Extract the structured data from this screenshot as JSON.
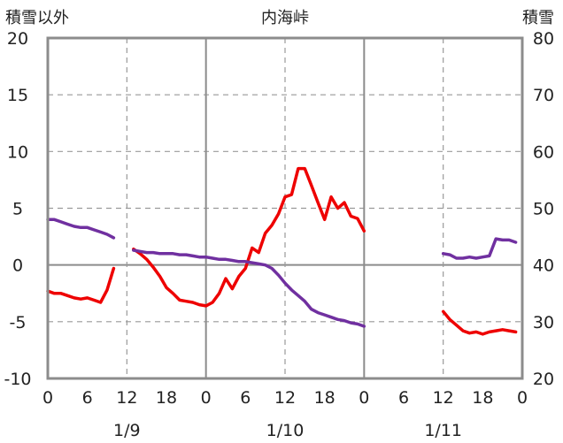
{
  "chart_data": {
    "type": "line",
    "title": "内海峠",
    "left_axis_label": "積雪以外",
    "right_axis_label": "積雪",
    "ylim_left": [
      -10,
      20
    ],
    "yticks_left": [
      "20",
      "15",
      "10",
      "5",
      "0",
      "-5",
      "-10"
    ],
    "ylim_right": [
      20,
      80
    ],
    "yticks_right": [
      "80",
      "70",
      "60",
      "50",
      "40",
      "30",
      "20"
    ],
    "xlim_hours": [
      0,
      72
    ],
    "xtick_labels": [
      "0",
      "6",
      "12",
      "18",
      "0",
      "6",
      "12",
      "18",
      "0",
      "6",
      "12",
      "18",
      "0"
    ],
    "date_labels": [
      "1/9",
      "1/10",
      "1/11"
    ],
    "grid": "vertical dashed every 12h, horizontal dashed every 5 units, solid at 0",
    "series": [
      {
        "color": "#ee0000",
        "axis": "left",
        "segments": [
          [
            [
              0,
              -2.3
            ],
            [
              1,
              -2.5
            ],
            [
              2,
              -2.5
            ],
            [
              3,
              -2.7
            ],
            [
              4,
              -2.9
            ],
            [
              5,
              -3.0
            ],
            [
              6,
              -2.9
            ],
            [
              7,
              -3.1
            ],
            [
              8,
              -3.3
            ],
            [
              9,
              -2.2
            ],
            [
              10,
              -0.3
            ]
          ],
          [
            [
              13,
              1.4
            ],
            [
              14,
              1.0
            ],
            [
              15,
              0.5
            ],
            [
              16,
              -0.2
            ],
            [
              17,
              -1.0
            ],
            [
              18,
              -2.0
            ],
            [
              19,
              -2.5
            ],
            [
              20,
              -3.1
            ],
            [
              21,
              -3.2
            ],
            [
              22,
              -3.3
            ],
            [
              23,
              -3.5
            ],
            [
              24,
              -3.6
            ],
            [
              25,
              -3.3
            ],
            [
              26,
              -2.5
            ],
            [
              27,
              -1.2
            ],
            [
              28,
              -2.1
            ],
            [
              29,
              -1.0
            ],
            [
              30,
              -0.3
            ],
            [
              31,
              1.5
            ],
            [
              32,
              1.1
            ],
            [
              33,
              2.8
            ],
            [
              34,
              3.5
            ],
            [
              35,
              4.5
            ],
            [
              36,
              6.0
            ],
            [
              37,
              6.2
            ],
            [
              38,
              8.5
            ],
            [
              39,
              8.5
            ],
            [
              40,
              7.0
            ],
            [
              41,
              5.5
            ],
            [
              42,
              4.0
            ],
            [
              43,
              6.0
            ],
            [
              44,
              5.0
            ],
            [
              45,
              5.5
            ],
            [
              46,
              4.3
            ],
            [
              47,
              4.1
            ],
            [
              48,
              3.0
            ]
          ],
          [
            [
              60,
              -4.1
            ],
            [
              61,
              -4.8
            ],
            [
              62,
              -5.3
            ],
            [
              63,
              -5.8
            ],
            [
              64,
              -6.0
            ],
            [
              65,
              -5.9
            ],
            [
              66,
              -6.1
            ],
            [
              67,
              -5.9
            ],
            [
              68,
              -5.8
            ],
            [
              69,
              -5.7
            ],
            [
              70,
              -5.8
            ],
            [
              71,
              -5.9
            ]
          ]
        ]
      },
      {
        "color": "#7030a0",
        "axis": "left",
        "segments": [
          [
            [
              0,
              4.0
            ],
            [
              1,
              4.0
            ],
            [
              2,
              3.8
            ],
            [
              3,
              3.6
            ],
            [
              4,
              3.4
            ],
            [
              5,
              3.3
            ],
            [
              6,
              3.3
            ],
            [
              7,
              3.1
            ],
            [
              8,
              2.9
            ],
            [
              9,
              2.7
            ],
            [
              10,
              2.4
            ]
          ],
          [
            [
              13,
              1.3
            ],
            [
              14,
              1.2
            ],
            [
              15,
              1.1
            ],
            [
              16,
              1.1
            ],
            [
              17,
              1.0
            ],
            [
              18,
              1.0
            ],
            [
              19,
              1.0
            ],
            [
              20,
              0.9
            ],
            [
              21,
              0.9
            ],
            [
              22,
              0.8
            ],
            [
              23,
              0.7
            ],
            [
              24,
              0.7
            ],
            [
              25,
              0.6
            ],
            [
              26,
              0.5
            ],
            [
              27,
              0.5
            ],
            [
              28,
              0.4
            ],
            [
              29,
              0.3
            ],
            [
              30,
              0.3
            ],
            [
              31,
              0.2
            ],
            [
              32,
              0.1
            ],
            [
              33,
              0.0
            ],
            [
              34,
              -0.3
            ],
            [
              35,
              -0.9
            ],
            [
              36,
              -1.6
            ],
            [
              37,
              -2.2
            ],
            [
              38,
              -2.7
            ],
            [
              39,
              -3.2
            ],
            [
              40,
              -3.9
            ],
            [
              41,
              -4.2
            ],
            [
              42,
              -4.4
            ],
            [
              43,
              -4.6
            ],
            [
              44,
              -4.8
            ],
            [
              45,
              -4.9
            ],
            [
              46,
              -5.1
            ],
            [
              47,
              -5.2
            ],
            [
              48,
              -5.4
            ]
          ],
          [
            [
              60,
              1.0
            ],
            [
              61,
              0.9
            ],
            [
              62,
              0.6
            ],
            [
              63,
              0.6
            ],
            [
              64,
              0.7
            ],
            [
              65,
              0.6
            ],
            [
              66,
              0.7
            ],
            [
              67,
              0.8
            ],
            [
              68,
              2.3
            ],
            [
              69,
              2.2
            ],
            [
              70,
              2.2
            ],
            [
              71,
              2.0
            ]
          ]
        ]
      }
    ]
  }
}
